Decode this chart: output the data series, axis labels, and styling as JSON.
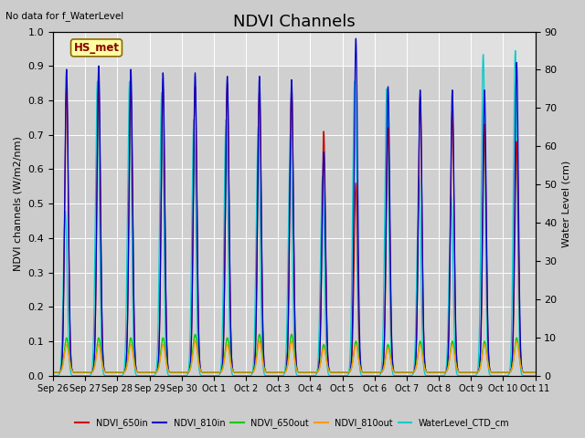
{
  "title": "NDVI Channels",
  "top_left_note": "No data for f_WaterLevel",
  "annotation": "HS_met",
  "ylabel_left": "NDVI channels (W/m2/nm)",
  "ylabel_right": "Water Level (cm)",
  "ylim_left": [
    0.0,
    1.0
  ],
  "ylim_right": [
    0,
    90
  ],
  "plot_bg_light": "#d8d8d8",
  "plot_bg_dark": "#b8b8b8",
  "fig_bg_color": "#c8c8c8",
  "line_colors": {
    "NDVI_650in": "#cc0000",
    "NDVI_810in": "#0000cc",
    "NDVI_650out": "#00cc00",
    "NDVI_810out": "#ff9900",
    "WaterLevel_CTD_cm": "#00cccc"
  },
  "xtick_labels": [
    "Sep 26",
    "Sep 27",
    "Sep 28",
    "Sep 29",
    "Sep 30",
    "Oct 1",
    "Oct 2",
    "Oct 3",
    "Oct 4",
    "Oct 5",
    "Oct 6",
    "Oct 7",
    "Oct 8",
    "Oct 9",
    "Oct 10",
    "Oct 11"
  ],
  "grid_color": "#ffffff",
  "title_fontsize": 13,
  "n_days": 15,
  "water_peaks_cm": [
    43,
    77,
    77,
    74,
    67,
    67,
    65,
    63,
    52,
    77,
    75,
    52,
    47,
    84,
    85
  ],
  "ndvi_810in_peaks": [
    0.88,
    0.89,
    0.88,
    0.87,
    0.87,
    0.86,
    0.86,
    0.85,
    0.64,
    0.97,
    0.83,
    0.82,
    0.82,
    0.82,
    0.9
  ],
  "ndvi_650in_peaks": [
    0.83,
    0.84,
    0.83,
    0.83,
    0.83,
    0.84,
    0.82,
    0.83,
    0.7,
    0.55,
    0.71,
    0.8,
    0.76,
    0.72,
    0.67
  ],
  "ndvi_650out_peaks": [
    0.1,
    0.1,
    0.1,
    0.1,
    0.11,
    0.1,
    0.11,
    0.11,
    0.08,
    0.09,
    0.08,
    0.09,
    0.09,
    0.09,
    0.1
  ],
  "ndvi_810out_peaks": [
    0.08,
    0.08,
    0.08,
    0.08,
    0.09,
    0.08,
    0.09,
    0.09,
    0.07,
    0.08,
    0.07,
    0.08,
    0.08,
    0.08,
    0.09
  ]
}
